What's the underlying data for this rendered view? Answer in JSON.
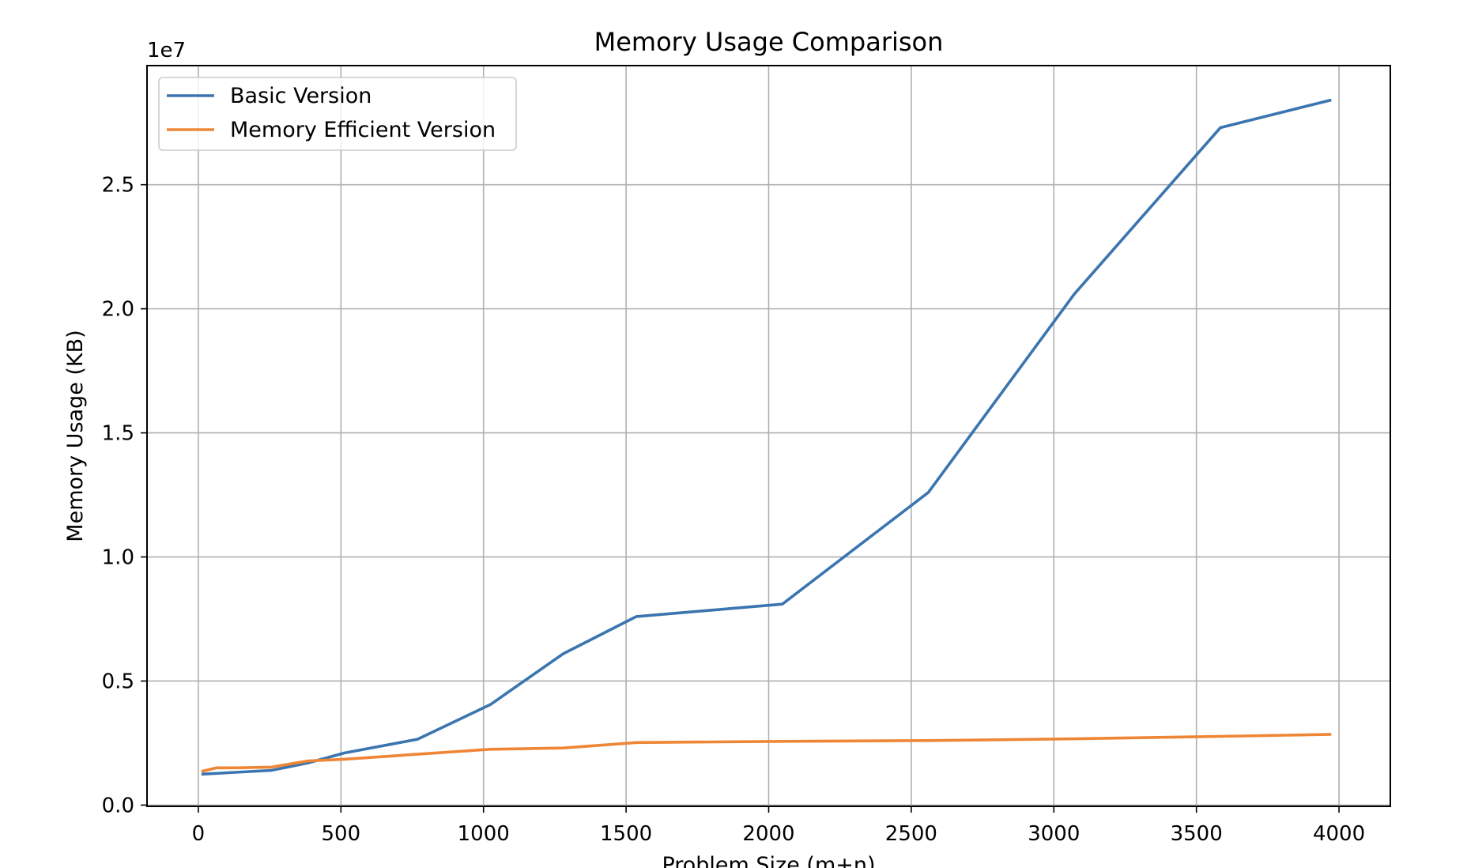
{
  "chart_data": {
    "type": "line",
    "title": "Memory Usage Comparison",
    "xlabel": "Problem Size (m+n)",
    "ylabel": "Memory Usage (KB)",
    "y_offset_label": "1e7",
    "xlim": [
      -180,
      4180
    ],
    "ylim": [
      -50000,
      29800000
    ],
    "x_ticks": [
      0,
      500,
      1000,
      1500,
      2000,
      2500,
      3000,
      3500,
      4000
    ],
    "x_tick_labels": [
      "0",
      "500",
      "1000",
      "1500",
      "2000",
      "2500",
      "3000",
      "3500",
      "4000"
    ],
    "y_ticks": [
      0,
      5000000,
      10000000,
      15000000,
      20000000,
      25000000
    ],
    "y_tick_labels": [
      "0.0",
      "0.5",
      "1.0",
      "1.5",
      "2.0",
      "2.5"
    ],
    "grid": true,
    "legend_position": "top-left",
    "series": [
      {
        "name": "Basic Version",
        "color": "#3b75af",
        "x": [
          16,
          64,
          128,
          256,
          384,
          512,
          768,
          1024,
          1280,
          1536,
          2048,
          2560,
          3072,
          3584,
          3968
        ],
        "y": [
          1250000,
          1280000,
          1320000,
          1400000,
          1700000,
          2100000,
          2650000,
          4050000,
          6100000,
          7600000,
          8100000,
          12600000,
          20600000,
          27300000,
          28400000
        ]
      },
      {
        "name": "Memory Efficient Version",
        "color": "#ef8636",
        "x": [
          16,
          64,
          128,
          256,
          384,
          512,
          768,
          1024,
          1280,
          1536,
          2048,
          2560,
          3072,
          3584,
          3968
        ],
        "y": [
          1370000,
          1500000,
          1500000,
          1530000,
          1780000,
          1850000,
          2050000,
          2250000,
          2300000,
          2520000,
          2570000,
          2600000,
          2670000,
          2770000,
          2850000
        ]
      }
    ]
  }
}
